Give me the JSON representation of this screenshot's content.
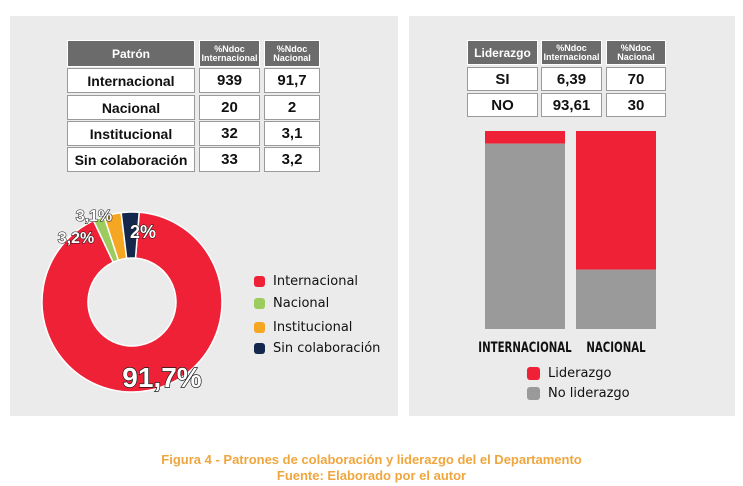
{
  "colab_table": {
    "headers": [
      "Patrón",
      "%Ndoc\nInternacional",
      "%Ndoc\nNacional"
    ],
    "rows": [
      {
        "label": "Internacional",
        "ndoc": "939",
        "pct": "91,7"
      },
      {
        "label": "Nacional",
        "ndoc": "20",
        "pct": "2"
      },
      {
        "label": "Institucional",
        "ndoc": "32",
        "pct": "3,1"
      },
      {
        "label": "Sin colaboración",
        "ndoc": "33",
        "pct": "3,2"
      }
    ]
  },
  "lider_table": {
    "headers": [
      "Liderazgo",
      "%Ndoc\nInternacional",
      "%Ndoc\nNacional"
    ],
    "rows": [
      {
        "label": "SI",
        "int": "6,39",
        "nac": "70"
      },
      {
        "label": "NO",
        "int": "93,61",
        "nac": "30"
      }
    ]
  },
  "chart_data": [
    {
      "type": "pie",
      "variant": "donut",
      "labels": [
        "Internacional",
        "Nacional",
        "Institucional",
        "Sin colaboración"
      ],
      "values": [
        91.7,
        2,
        3.1,
        3.2
      ],
      "data_labels": [
        "91,7%",
        "2%",
        "3,1%",
        "3,2%"
      ],
      "colors": [
        "#ee2136",
        "#9ccc5d",
        "#f5a623",
        "#14284e"
      ],
      "legend": "right"
    },
    {
      "type": "bar",
      "stacked": true,
      "percent": true,
      "categories": [
        "INTERNACIONAL",
        "NACIONAL"
      ],
      "series": [
        {
          "name": "Liderazgo",
          "values": [
            6.39,
            70
          ],
          "color": "#ee2136"
        },
        {
          "name": "No liderazgo",
          "values": [
            93.61,
            30
          ],
          "color": "#9a9a9a"
        }
      ],
      "ylim": [
        0,
        100
      ],
      "grid": false,
      "legend": "bottom"
    }
  ],
  "caption": {
    "line1": "Figura 4 -  Patrones de colaboración y liderazgo del el Departamento",
    "line2": "Fuente: Elaborado por el autor"
  }
}
